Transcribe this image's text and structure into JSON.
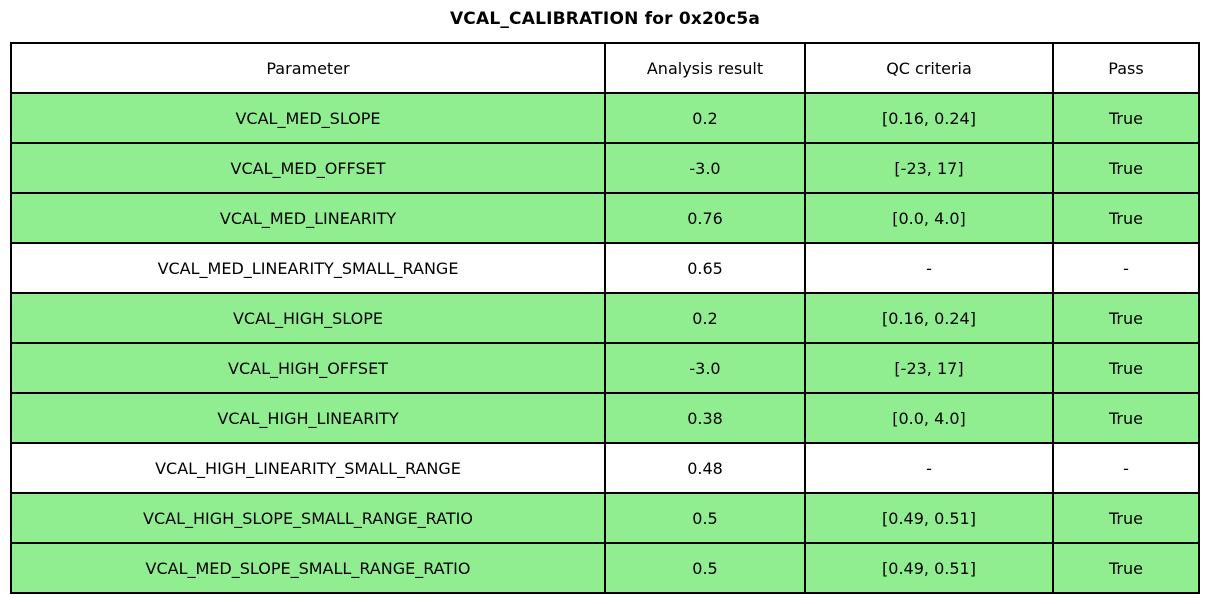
{
  "title": "VCAL_CALIBRATION for 0x20c5a",
  "colors": {
    "pass_row_green": "#90EE90",
    "neutral_row_white": "#FFFFFF",
    "border_black": "#000000"
  },
  "table": {
    "headers": [
      "Parameter",
      "Analysis result",
      "QC criteria",
      "Pass"
    ],
    "rows": [
      {
        "parameter": "VCAL_MED_SLOPE",
        "result": "0.2",
        "criteria": "[0.16, 0.24]",
        "pass": "True",
        "highlight": true
      },
      {
        "parameter": "VCAL_MED_OFFSET",
        "result": "-3.0",
        "criteria": "[-23, 17]",
        "pass": "True",
        "highlight": true
      },
      {
        "parameter": "VCAL_MED_LINEARITY",
        "result": "0.76",
        "criteria": "[0.0, 4.0]",
        "pass": "True",
        "highlight": true
      },
      {
        "parameter": "VCAL_MED_LINEARITY_SMALL_RANGE",
        "result": "0.65",
        "criteria": "-",
        "pass": "-",
        "highlight": false
      },
      {
        "parameter": "VCAL_HIGH_SLOPE",
        "result": "0.2",
        "criteria": "[0.16, 0.24]",
        "pass": "True",
        "highlight": true
      },
      {
        "parameter": "VCAL_HIGH_OFFSET",
        "result": "-3.0",
        "criteria": "[-23, 17]",
        "pass": "True",
        "highlight": true
      },
      {
        "parameter": "VCAL_HIGH_LINEARITY",
        "result": "0.38",
        "criteria": "[0.0, 4.0]",
        "pass": "True",
        "highlight": true
      },
      {
        "parameter": "VCAL_HIGH_LINEARITY_SMALL_RANGE",
        "result": "0.48",
        "criteria": "-",
        "pass": "-",
        "highlight": false
      },
      {
        "parameter": "VCAL_HIGH_SLOPE_SMALL_RANGE_RATIO",
        "result": "0.5",
        "criteria": "[0.49, 0.51]",
        "pass": "True",
        "highlight": true
      },
      {
        "parameter": "VCAL_MED_SLOPE_SMALL_RANGE_RATIO",
        "result": "0.5",
        "criteria": "[0.49, 0.51]",
        "pass": "True",
        "highlight": true
      }
    ]
  }
}
